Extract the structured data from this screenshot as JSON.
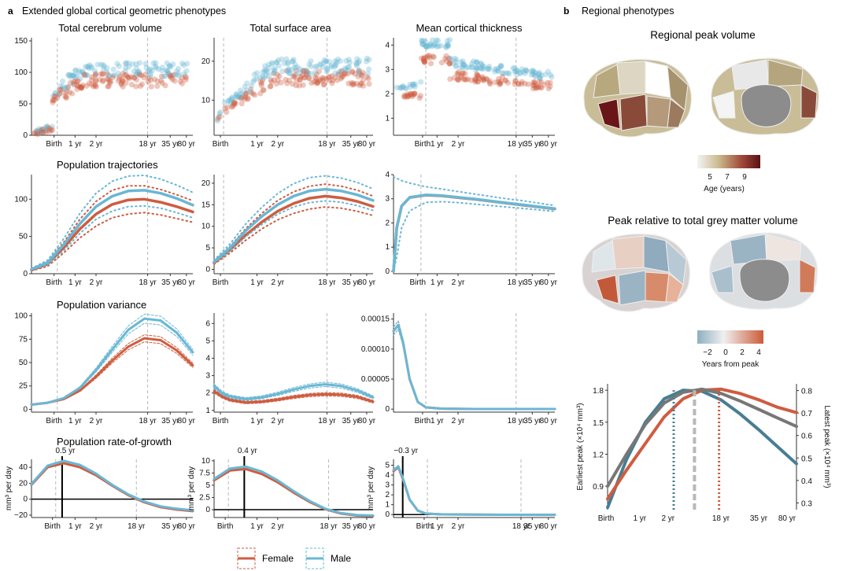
{
  "panel_a": {
    "letter": "a",
    "title": "Extended global cortical geometric phenotypes"
  },
  "panel_b": {
    "letter": "b",
    "title": "Regional phenotypes"
  },
  "col_titles": [
    "Total cerebrum volume",
    "Total surface area",
    "Mean cortical thickness"
  ],
  "row_titles": [
    "Population trajectories",
    "Population variance",
    "Population rate-of-growth"
  ],
  "colors": {
    "female": "#cf5c40",
    "male": "#6ab7d4",
    "male_dark": "#477e93",
    "grey": "#777777",
    "dashed": "#b8b8b8"
  },
  "x_ticks": [
    "Birth",
    "1 yr",
    "2 yr",
    "18 yr",
    "35 yr",
    "80 yr"
  ],
  "rate_ylabel": "mm³ per day",
  "rate_peaks": [
    "0.5 yr",
    "0.4 yr",
    "−0.3 yr"
  ],
  "legend": {
    "female": "Female",
    "male": "Male"
  },
  "regional_peak": {
    "title": "Regional peak volume",
    "colorbar_ticks": [
      "5",
      "7",
      "9"
    ],
    "colorbar_label": "Age (years)"
  },
  "peak_relative": {
    "title": "Peak relative to total grey matter volume",
    "colorbar_ticks": [
      "−2",
      "0",
      "2",
      "4"
    ],
    "colorbar_label": "Years from peak"
  },
  "chart_data": [
    {
      "type": "scatter",
      "panel": "a",
      "row": "observations",
      "title": "Total cerebrum volume",
      "ylim": [
        0,
        155
      ],
      "yticks": [
        0,
        50,
        100,
        150
      ],
      "xlabel": "",
      "ylabel": "",
      "grid": false
    },
    {
      "type": "scatter",
      "panel": "a",
      "row": "observations",
      "title": "Total surface area",
      "ylim": [
        1,
        26
      ],
      "yticks": [
        10,
        20
      ],
      "grid": false
    },
    {
      "type": "scatter",
      "panel": "a",
      "row": "observations",
      "title": "Mean cortical thickness",
      "ylim": [
        0.3,
        4.3
      ],
      "yticks": [
        1,
        2,
        3,
        4
      ],
      "grid": false
    },
    {
      "type": "line",
      "panel": "a",
      "row": "Population trajectories",
      "column": "Total cerebrum volume",
      "ylim": [
        0,
        133
      ],
      "yticks": [
        0,
        50,
        100
      ],
      "x": [
        0,
        0.1,
        0.2,
        0.3,
        0.4,
        0.5,
        0.6,
        0.7,
        0.8,
        0.9,
        1.0
      ],
      "series": [
        {
          "name": "Female",
          "values": [
            5,
            13,
            35,
            60,
            80,
            93,
            99,
            100,
            96,
            90,
            83
          ],
          "lower": [
            4,
            10,
            28,
            48,
            64,
            75,
            80,
            82,
            79,
            74,
            69
          ],
          "upper": [
            6,
            16,
            42,
            73,
            97,
            112,
            118,
            118,
            113,
            106,
            98
          ]
        },
        {
          "name": "Male",
          "values": [
            6,
            15,
            39,
            67,
            90,
            104,
            111,
            112,
            108,
            101,
            92
          ],
          "lower": [
            5,
            12,
            31,
            54,
            73,
            84,
            90,
            91,
            88,
            82,
            75
          ],
          "upper": [
            7,
            18,
            47,
            81,
            108,
            124,
            131,
            132,
            127,
            119,
            109
          ]
        }
      ]
    },
    {
      "type": "line",
      "panel": "a",
      "row": "Population trajectories",
      "column": "Total surface area",
      "ylim": [
        -1,
        22
      ],
      "yticks": [
        0,
        5,
        10,
        15,
        20
      ],
      "x": [
        0,
        0.1,
        0.2,
        0.3,
        0.4,
        0.5,
        0.6,
        0.7,
        0.8,
        0.9,
        1.0
      ],
      "series": [
        {
          "name": "Female",
          "values": [
            1.5,
            4.5,
            8,
            11,
            13.5,
            15.3,
            16.5,
            17,
            16.6,
            15.8,
            14.6
          ],
          "lower": [
            1.2,
            3.8,
            6.8,
            9.4,
            11.5,
            13,
            14,
            14.5,
            14.2,
            13.5,
            12.5
          ],
          "upper": [
            1.8,
            5.3,
            9.5,
            13,
            16,
            18,
            19.3,
            19.8,
            19.3,
            18.4,
            17
          ]
        },
        {
          "name": "Male",
          "values": [
            1.8,
            5,
            9,
            12.3,
            15,
            17,
            18.2,
            18.6,
            18.2,
            17.3,
            16
          ],
          "lower": [
            1.5,
            4.2,
            7.6,
            10.4,
            12.8,
            14.5,
            15.5,
            15.9,
            15.6,
            14.8,
            13.7
          ],
          "upper": [
            2.1,
            5.9,
            10.6,
            14.4,
            17.6,
            19.9,
            21.3,
            21.7,
            21.2,
            20.2,
            18.7
          ]
        }
      ]
    },
    {
      "type": "line",
      "panel": "a",
      "row": "Population trajectories",
      "column": "Mean cortical thickness",
      "ylim": [
        -0.1,
        4
      ],
      "yticks": [
        0,
        1,
        2,
        3,
        4
      ],
      "x": [
        0,
        0.02,
        0.05,
        0.1,
        0.2,
        0.3,
        0.4,
        0.5,
        0.6,
        0.7,
        0.8,
        0.9,
        1.0
      ],
      "series": [
        {
          "name": "Female",
          "values": [
            0,
            1.8,
            2.7,
            3.05,
            3.15,
            3.12,
            3.05,
            2.98,
            2.9,
            2.82,
            2.74,
            2.66,
            2.58
          ]
        },
        {
          "name": "Male",
          "values": [
            0,
            1.8,
            2.7,
            3.06,
            3.16,
            3.13,
            3.06,
            2.99,
            2.91,
            2.83,
            2.75,
            2.67,
            2.59
          ],
          "lower": [
            0,
            0.6,
            1.8,
            2.5,
            2.85,
            2.88,
            2.84,
            2.78,
            2.72,
            2.66,
            2.6,
            2.54,
            2.48
          ],
          "upper": [
            3.9,
            3.85,
            3.75,
            3.65,
            3.5,
            3.4,
            3.3,
            3.2,
            3.1,
            3.0,
            2.92,
            2.82,
            2.72
          ]
        }
      ]
    },
    {
      "type": "line",
      "panel": "a",
      "row": "Population variance",
      "column": "Total cerebrum volume",
      "ylim": [
        -3,
        103
      ],
      "yticks": [
        0,
        25,
        50,
        75,
        100
      ],
      "x": [
        0,
        0.1,
        0.2,
        0.3,
        0.4,
        0.5,
        0.6,
        0.7,
        0.8,
        0.9,
        1.0
      ],
      "series": [
        {
          "name": "Female",
          "values": [
            5,
            7,
            11,
            20,
            35,
            52,
            67,
            76,
            74,
            63,
            47
          ]
        },
        {
          "name": "Male",
          "values": [
            5,
            7,
            12,
            23,
            42,
            64,
            85,
            97,
            95,
            82,
            61
          ]
        }
      ]
    },
    {
      "type": "line",
      "panel": "a",
      "row": "Population variance",
      "column": "Total surface area",
      "ylim": [
        0.9,
        6.6
      ],
      "yticks": [
        1,
        2,
        3,
        4,
        5,
        6
      ],
      "x": [
        0,
        0.05,
        0.1,
        0.2,
        0.3,
        0.4,
        0.5,
        0.6,
        0.7,
        0.8,
        0.9,
        1.0
      ],
      "series": [
        {
          "name": "Female",
          "values": [
            2.1,
            1.8,
            1.6,
            1.45,
            1.5,
            1.62,
            1.77,
            1.88,
            1.93,
            1.9,
            1.78,
            1.5
          ]
        },
        {
          "name": "Male",
          "values": [
            2.4,
            2.0,
            1.8,
            1.65,
            1.75,
            1.95,
            2.2,
            2.4,
            2.5,
            2.4,
            2.15,
            1.75
          ]
        }
      ]
    },
    {
      "type": "line",
      "panel": "a",
      "row": "Population variance",
      "column": "Mean cortical thickness",
      "ylim": [
        -5e-06,
        0.00016
      ],
      "yticks": [
        0,
        5e-05,
        0.0001,
        0.00015
      ],
      "x": [
        0,
        0.03,
        0.06,
        0.1,
        0.15,
        0.2,
        0.3,
        0.5,
        0.7,
        1.0
      ],
      "series": [
        {
          "name": "Female",
          "values": [
            0.00013,
            0.00014,
            0.00011,
            5e-05,
            1.2e-05,
            3e-06,
            8e-07,
            3e-07,
            2e-07,
            2e-07
          ]
        },
        {
          "name": "Male",
          "values": [
            0.00013,
            0.00014,
            0.00011,
            5e-05,
            1.2e-05,
            3e-06,
            8e-07,
            3e-07,
            2e-07,
            2e-07
          ]
        }
      ]
    },
    {
      "type": "line",
      "panel": "a",
      "row": "Population rate-of-growth",
      "column": "Total cerebrum volume",
      "ylabel": "mm³ per day",
      "ylim": [
        -23,
        50
      ],
      "yticks": [
        -20,
        0,
        20,
        40
      ],
      "x": [
        0,
        0.1,
        0.2,
        0.3,
        0.4,
        0.5,
        0.6,
        0.7,
        0.8,
        0.9,
        1.0
      ],
      "series": [
        {
          "name": "Female",
          "values": [
            18,
            40,
            45,
            40,
            30,
            17,
            5,
            -4,
            -10,
            -13,
            -15
          ]
        },
        {
          "name": "Male",
          "values": [
            19,
            42,
            48,
            43,
            32,
            18,
            6,
            -3,
            -9,
            -12,
            -14
          ]
        }
      ]
    },
    {
      "type": "line",
      "panel": "a",
      "row": "Population rate-of-growth",
      "column": "Total surface area",
      "ylabel": "mm³ per day",
      "ylim": [
        -1.6,
        10.3
      ],
      "yticks": [
        0,
        2.5,
        5.0,
        7.5,
        10.0
      ],
      "x": [
        0,
        0.1,
        0.2,
        0.3,
        0.4,
        0.5,
        0.6,
        0.7,
        0.8,
        0.9,
        1.0
      ],
      "series": [
        {
          "name": "Female",
          "values": [
            6,
            8,
            8.3,
            7.3,
            5.6,
            3.5,
            1.6,
            0.1,
            -0.8,
            -1.2,
            -1.3
          ]
        },
        {
          "name": "Male",
          "values": [
            6.3,
            8.4,
            8.8,
            7.8,
            6.0,
            3.8,
            1.8,
            0.2,
            -0.7,
            -1.1,
            -1.2
          ]
        }
      ]
    },
    {
      "type": "line",
      "panel": "a",
      "row": "Population rate-of-growth",
      "column": "Mean cortical thickness",
      "ylabel": "mm³ per day",
      "ylim": [
        -0.3,
        5.6
      ],
      "yticks": [
        0,
        1,
        2,
        3,
        4,
        5
      ],
      "x": [
        0,
        0.03,
        0.06,
        0.1,
        0.15,
        0.2,
        0.3,
        0.5,
        0.7,
        1.0
      ],
      "series": [
        {
          "name": "Female",
          "values": [
            4.4,
            4.8,
            3.5,
            1.5,
            0.4,
            0.1,
            0.02,
            0,
            -0.02,
            -0.03
          ]
        },
        {
          "name": "Male",
          "values": [
            4.5,
            4.9,
            3.6,
            1.5,
            0.4,
            0.1,
            0.02,
            0,
            -0.02,
            -0.03
          ]
        }
      ]
    },
    {
      "type": "line",
      "panel": "b",
      "left_ylabel": "Earliest peak (×10⁴ mm³)",
      "right_ylabel": "Latest peak (×10⁴ mm³)",
      "ylim": [
        0.68,
        1.86
      ],
      "yticks": [
        0.9,
        1.2,
        1.5,
        1.8
      ],
      "y2lim": [
        0.27,
        0.83
      ],
      "y2ticks": [
        0.3,
        0.4,
        0.5,
        0.6,
        0.7,
        0.8
      ],
      "x": [
        0,
        0.1,
        0.2,
        0.3,
        0.4,
        0.5,
        0.6,
        0.7,
        0.8,
        0.9,
        1.0
      ],
      "series": [
        {
          "name": "Earliest peak",
          "values": [
            0.7,
            1.15,
            1.5,
            1.72,
            1.8,
            1.79,
            1.71,
            1.58,
            1.43,
            1.27,
            1.11
          ]
        },
        {
          "name": "Latest peak",
          "values": [
            0.78,
            1.05,
            1.3,
            1.55,
            1.72,
            1.8,
            1.81,
            1.77,
            1.71,
            1.64,
            1.59
          ]
        },
        {
          "name": "Total grey matter",
          "values": [
            0.9,
            1.2,
            1.48,
            1.68,
            1.78,
            1.81,
            1.77,
            1.7,
            1.62,
            1.54,
            1.46
          ]
        }
      ]
    }
  ]
}
